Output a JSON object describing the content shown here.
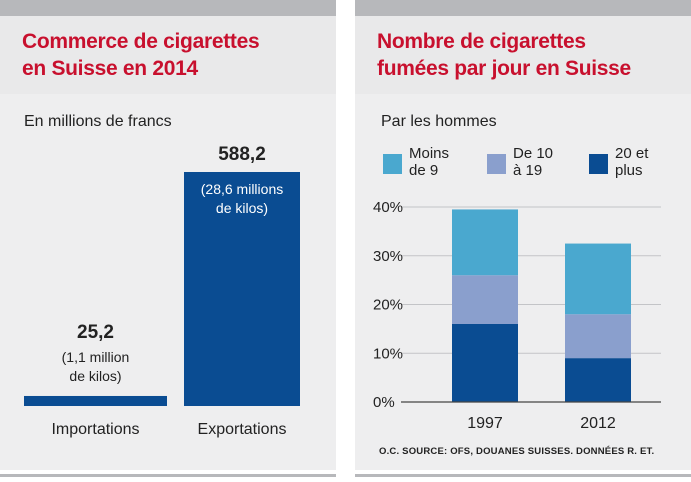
{
  "left": {
    "title_line1": "Commerce de cigarettes",
    "title_line2": "en Suisse en 2014",
    "subtitle": "En millions de francs"
  },
  "right": {
    "title_line1": "Nombre de cigarettes",
    "title_line2": "fumées par jour en Suisse",
    "subtitle": "Par les hommes",
    "source": "O.C. SOURCE: OFS, DOUANES SUISSES. DONNÉES R. ET."
  },
  "chart_data": [
    {
      "type": "bar",
      "title": "Commerce de cigarettes en Suisse en 2014",
      "ylabel": "En millions de francs",
      "categories": [
        "Importations",
        "Exportations"
      ],
      "values": [
        25.2,
        588.2
      ],
      "value_labels": [
        "25,2",
        "588,2"
      ],
      "notes": [
        [
          "(1,1 million",
          "de kilos)"
        ],
        [
          "(28,6 millions",
          "de kilos)"
        ]
      ],
      "ylim": [
        0,
        588.2
      ],
      "color": "#0a4c92"
    },
    {
      "type": "bar",
      "stacked": true,
      "title": "Nombre de cigarettes fumées par jour en Suisse",
      "subtitle": "Par les hommes",
      "categories": [
        "1997",
        "2012"
      ],
      "series": [
        {
          "name": "20 et plus",
          "legend_lines": [
            "20 et",
            "plus"
          ],
          "values": [
            16,
            9
          ],
          "color": "#0a4c92"
        },
        {
          "name": "De 10 à 19",
          "legend_lines": [
            "De 10",
            "à 19"
          ],
          "values": [
            10,
            9
          ],
          "color": "#8a9fcd"
        },
        {
          "name": "Moins de 9",
          "legend_lines": [
            "Moins",
            "de 9"
          ],
          "values": [
            13.5,
            14.5
          ],
          "color": "#4aa8cf"
        }
      ],
      "yticks": [
        0,
        10,
        20,
        30,
        40
      ],
      "ytick_labels": [
        "0%",
        "10%",
        "20%",
        "30%",
        "40%"
      ],
      "ylim": [
        0,
        40
      ],
      "grid": true,
      "legend": "top"
    }
  ]
}
